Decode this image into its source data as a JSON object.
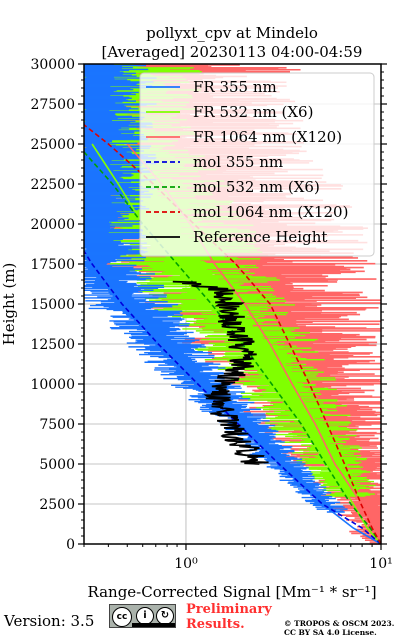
{
  "chart_data": {
    "type": "line",
    "title_line1": "pollyxt_cpv at Mindelo",
    "title_line2": "[Averaged] 20230113 04:00-04:59",
    "xlabel": "Range-Corrected Signal [Mm⁻¹ * sr⁻¹]",
    "ylabel": "Height (m)",
    "xscale": "log",
    "xlim": [
      0.3,
      10
    ],
    "ylim": [
      0,
      30000
    ],
    "x_ticks": [
      1,
      10
    ],
    "x_tick_labels": [
      "10⁰",
      "10¹"
    ],
    "y_ticks": [
      0,
      2500,
      5000,
      7500,
      10000,
      12500,
      15000,
      17500,
      20000,
      22500,
      25000,
      27500,
      30000
    ],
    "grid": true,
    "legend_position": "top-right",
    "colors": {
      "fr355": "#1a75ff",
      "fr532": "#80ff00",
      "fr1064": "#ff6666",
      "mol355": "#0000dd",
      "mol532": "#00a000",
      "mol1064": "#dd0000",
      "reference": "#000000"
    },
    "series": [
      {
        "name": "FR 355 nm",
        "key": "fr355",
        "style": "solid",
        "heights": [
          0,
          1000,
          2500,
          5000,
          7500,
          10000,
          12500,
          15000,
          17500
        ],
        "x": [
          10,
          7.2,
          5.0,
          3.0,
          1.9,
          1.15,
          0.72,
          0.47,
          0.31
        ]
      },
      {
        "name": "FR 532 nm (X6)",
        "key": "fr532",
        "style": "solid",
        "heights": [
          0,
          1000,
          2500,
          5000,
          7500,
          10000,
          12500,
          15000,
          17500,
          20000,
          22500,
          25000
        ],
        "x": [
          10,
          8.5,
          7.2,
          5.3,
          4.0,
          2.8,
          2.0,
          1.3,
          0.85,
          0.6,
          0.45,
          0.33
        ]
      },
      {
        "name": "FR 1064 nm (X120)",
        "key": "fr1064",
        "style": "solid",
        "heights": [
          0,
          2500,
          5000,
          7500,
          10000,
          12500,
          15000,
          17500,
          20000,
          22500,
          25000
        ],
        "x": [
          10,
          8.0,
          5.8,
          4.6,
          3.5,
          2.7,
          2.0,
          1.4,
          1.05,
          0.75,
          0.5
        ]
      },
      {
        "name": "mol 355 nm",
        "key": "mol355",
        "style": "dashed",
        "heights": [
          0,
          1000,
          2500,
          5000,
          7500,
          10000,
          12500,
          15000,
          17500,
          18300
        ],
        "x": [
          10,
          8.0,
          5.0,
          3.0,
          1.85,
          1.15,
          0.72,
          0.47,
          0.33,
          0.3
        ]
      },
      {
        "name": "mol 532 nm (X6)",
        "key": "mol532",
        "style": "dashed",
        "heights": [
          0,
          1000,
          2500,
          5000,
          7500,
          10000,
          12500,
          15000,
          17500,
          20000,
          22500,
          24500
        ],
        "x": [
          10,
          8.8,
          7.0,
          5.2,
          3.9,
          2.75,
          1.95,
          1.35,
          0.9,
          0.6,
          0.42,
          0.3
        ]
      },
      {
        "name": "mol 1064 nm (X120)",
        "key": "mol1064",
        "style": "dashed",
        "heights": [
          0,
          1000,
          2500,
          5000,
          7500,
          10000,
          12500,
          15000,
          17500,
          20000,
          22500,
          25000,
          26200
        ],
        "x": [
          10,
          9.0,
          7.9,
          6.5,
          5.3,
          4.3,
          3.4,
          2.7,
          1.8,
          1.1,
          0.68,
          0.4,
          0.3
        ]
      },
      {
        "name": "Reference Height",
        "key": "reference",
        "style": "solid",
        "heights": [
          5000,
          6000,
          7000,
          8000,
          9000,
          10000,
          11000,
          12000,
          13000,
          14000,
          15000,
          16000,
          16400
        ],
        "x": [
          2.3,
          2.0,
          1.75,
          1.55,
          1.45,
          1.6,
          1.9,
          2.0,
          1.85,
          1.7,
          1.65,
          1.5,
          0.9
        ]
      }
    ]
  },
  "footer": {
    "version": "Version: 3.5",
    "license_badge": {
      "cc": "cc",
      "by": "BY",
      "sa": "SA"
    },
    "preliminary_line1": "Preliminary",
    "preliminary_line2": "Results.",
    "copyright_line1": "© TROPOS & OSCM 2023.",
    "copyright_line2": "CC BY SA 4.0 License."
  }
}
